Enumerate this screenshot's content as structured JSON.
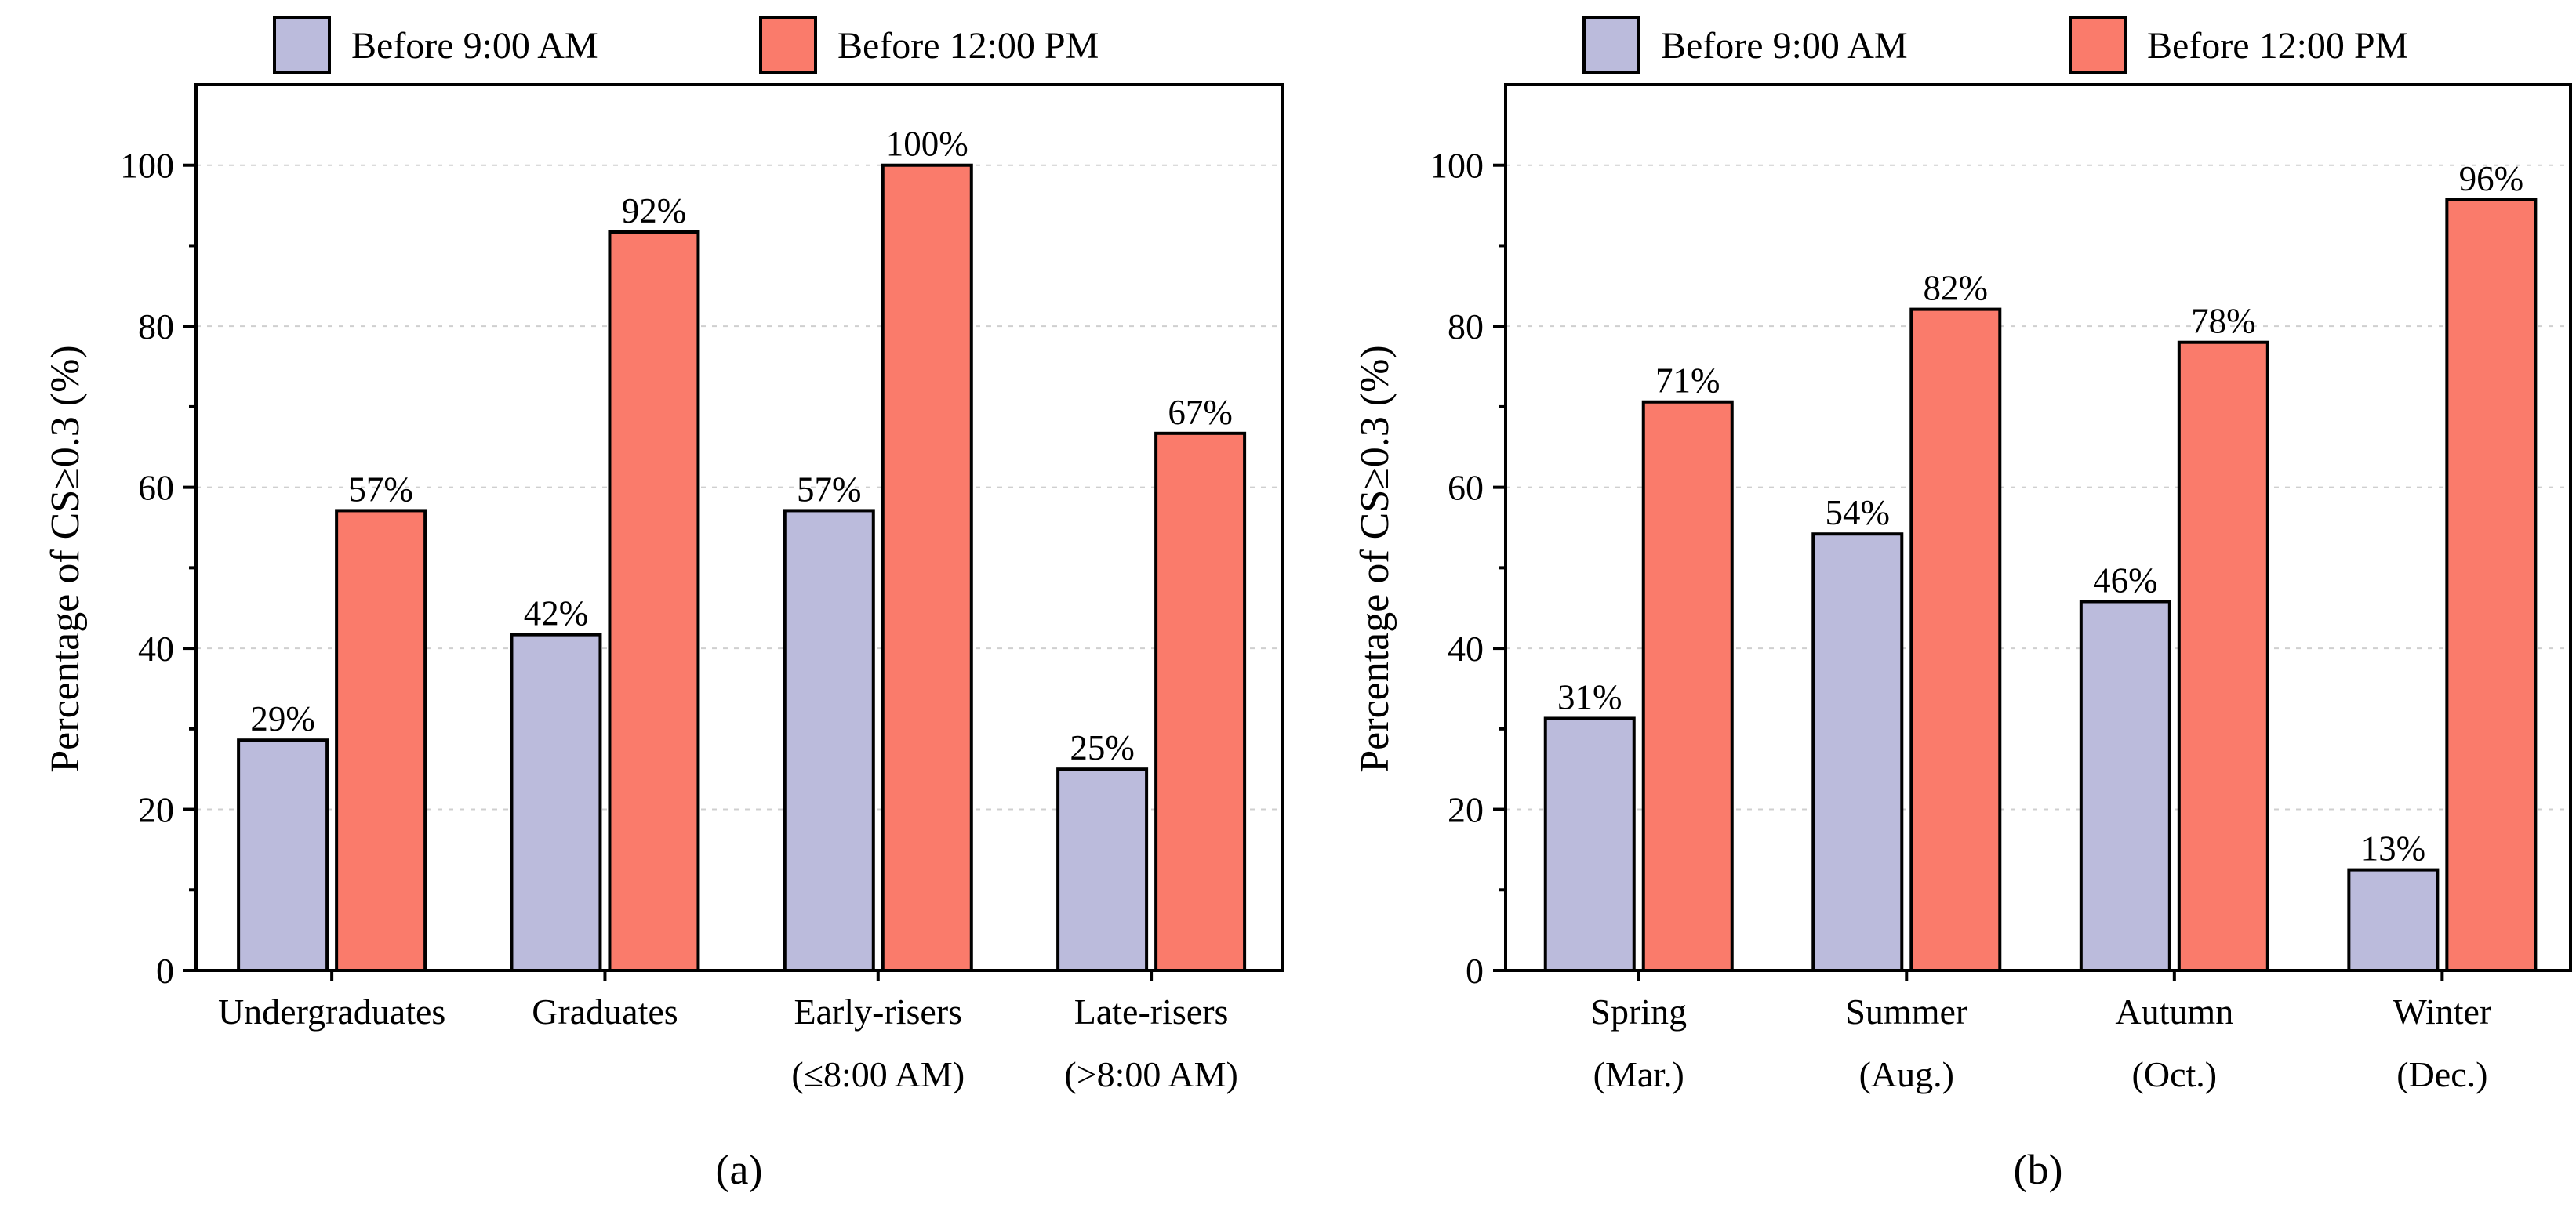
{
  "legend": {
    "items": [
      {
        "name": "Before 9:00 AM",
        "color": "#bbbbdc"
      },
      {
        "name": "Before 12:00 PM",
        "color": "#fa7b6b"
      }
    ]
  },
  "chart_data": [
    {
      "type": "bar",
      "panel_label": "(a)",
      "ylabel": "Percentage of CS≥0.3 (%)",
      "ylim": [
        0,
        110
      ],
      "yticks": [
        0,
        20,
        40,
        60,
        80,
        100
      ],
      "grid": true,
      "categories": [
        [
          "Undergraduates"
        ],
        [
          "Graduates"
        ],
        [
          "Early-risers",
          "(≤8:00 AM)"
        ],
        [
          "Late-risers",
          "(>8:00 AM)"
        ]
      ],
      "series": [
        {
          "name": "Before 9:00 AM",
          "color": "#bbbbdc",
          "values": [
            28.6,
            41.7,
            57.1,
            25.0
          ],
          "labels": [
            "29%",
            "42%",
            "57%",
            "25%"
          ]
        },
        {
          "name": "Before 12:00 PM",
          "color": "#fa7b6b",
          "values": [
            57.1,
            91.7,
            100.0,
            66.7
          ],
          "labels": [
            "57%",
            "92%",
            "100%",
            "67%"
          ]
        }
      ]
    },
    {
      "type": "bar",
      "panel_label": "(b)",
      "ylabel": "Percentage of CS≥0.3 (%)",
      "ylim": [
        0,
        110
      ],
      "yticks": [
        0,
        20,
        40,
        60,
        80,
        100
      ],
      "grid": true,
      "categories": [
        [
          "Spring",
          "(Mar.)"
        ],
        [
          "Summer",
          "(Aug.)"
        ],
        [
          "Autumn",
          "(Oct.)"
        ],
        [
          "Winter",
          "(Dec.)"
        ]
      ],
      "series": [
        {
          "name": "Before 9:00 AM",
          "color": "#bbbbdc",
          "values": [
            31.3,
            54.2,
            45.8,
            12.5
          ],
          "labels": [
            "31%",
            "54%",
            "46%",
            "13%"
          ]
        },
        {
          "name": "Before 12:00 PM",
          "color": "#fa7b6b",
          "values": [
            70.6,
            82.1,
            78.0,
            95.7
          ],
          "labels": [
            "71%",
            "82%",
            "78%",
            "96%"
          ]
        }
      ]
    }
  ]
}
